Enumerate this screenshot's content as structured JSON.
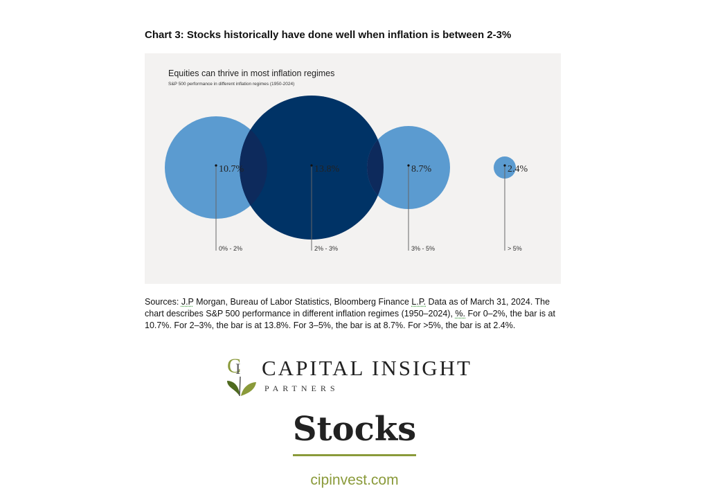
{
  "heading": "Chart 3: Stocks historically have done well when inflation is between 2-3%",
  "chart_data": {
    "type": "bubble",
    "title": "Equities can thrive in most inflation regimes",
    "subtitle": "S&P 500 performance in different inflation regimes (1950-2024)",
    "categories": [
      "0% - 2%",
      "2% - 3%",
      "3% - 5%",
      "> 5%"
    ],
    "values": [
      10.7,
      13.8,
      8.7,
      2.4
    ],
    "value_labels": [
      "10.7%",
      "13.8%",
      "8.7%",
      "2.4%"
    ],
    "colors": [
      "#5b9bd0",
      "#003366",
      "#5b9bd0",
      "#5b9bd0"
    ],
    "overlap_color": "#0d2a5c",
    "label_color": "#222222",
    "background": "#f3f2f1"
  },
  "sources": {
    "part1": "Sources: ",
    "jp": "J.P",
    "part2": " Morgan, Bureau of Labor Statistics, Bloomberg Finance ",
    "lp": "L.P.",
    "part3": " Data as of March 31, 2024.  The chart describes S&P 500 performance in different inflation regimes (1950–2024), ",
    "pct": "%.",
    "part4": " For 0–2%, the bar is at 10.7%. For 2–3%, the bar is at 13.8%. For 3–5%, the bar is at 8.7%. For >5%, the bar is at 2.4%."
  },
  "logo": {
    "monogram": "CI",
    "name": "CAPITAL INSIGHT",
    "tagline": "PARTNERS",
    "accent_color": "#8a9a3a"
  },
  "page_title": "Stocks",
  "site": "cipinvest.com"
}
